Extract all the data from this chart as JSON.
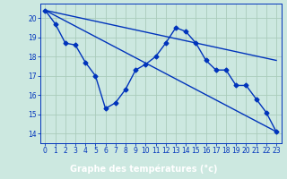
{
  "title": "",
  "xlabel": "Graphe des températures (°c)",
  "bg_color": "#cce8e0",
  "plot_bg_color": "#cce8e0",
  "xlabel_bg": "#2244aa",
  "grid_color": "#aaccbb",
  "line_color": "#0033bb",
  "x_ticks": [
    0,
    1,
    2,
    3,
    4,
    5,
    6,
    7,
    8,
    9,
    10,
    11,
    12,
    13,
    14,
    15,
    16,
    17,
    18,
    19,
    20,
    21,
    22,
    23
  ],
  "ylim": [
    13.5,
    20.75
  ],
  "xlim": [
    -0.5,
    23.5
  ],
  "yticks": [
    14,
    15,
    16,
    17,
    18,
    19,
    20
  ],
  "series1_x": [
    0,
    1,
    2,
    3,
    4,
    5,
    6,
    7,
    8,
    9,
    10,
    11,
    12,
    13,
    14,
    15,
    16,
    17,
    18,
    19,
    20,
    21,
    22,
    23
  ],
  "series1_y": [
    20.4,
    19.7,
    18.7,
    18.6,
    17.7,
    17.0,
    15.3,
    15.6,
    16.3,
    17.3,
    17.6,
    18.0,
    18.7,
    19.5,
    19.3,
    18.7,
    17.8,
    17.3,
    17.3,
    16.5,
    16.5,
    15.8,
    15.1,
    14.1
  ],
  "trend1_x": [
    0,
    23
  ],
  "trend1_y": [
    20.4,
    17.8
  ],
  "trend2_x": [
    0,
    23
  ],
  "trend2_y": [
    20.4,
    14.1
  ],
  "marker": "D",
  "marker_size": 2.5,
  "linewidth": 1.0,
  "tick_fontsize": 5.5,
  "label_fontsize": 7.0
}
